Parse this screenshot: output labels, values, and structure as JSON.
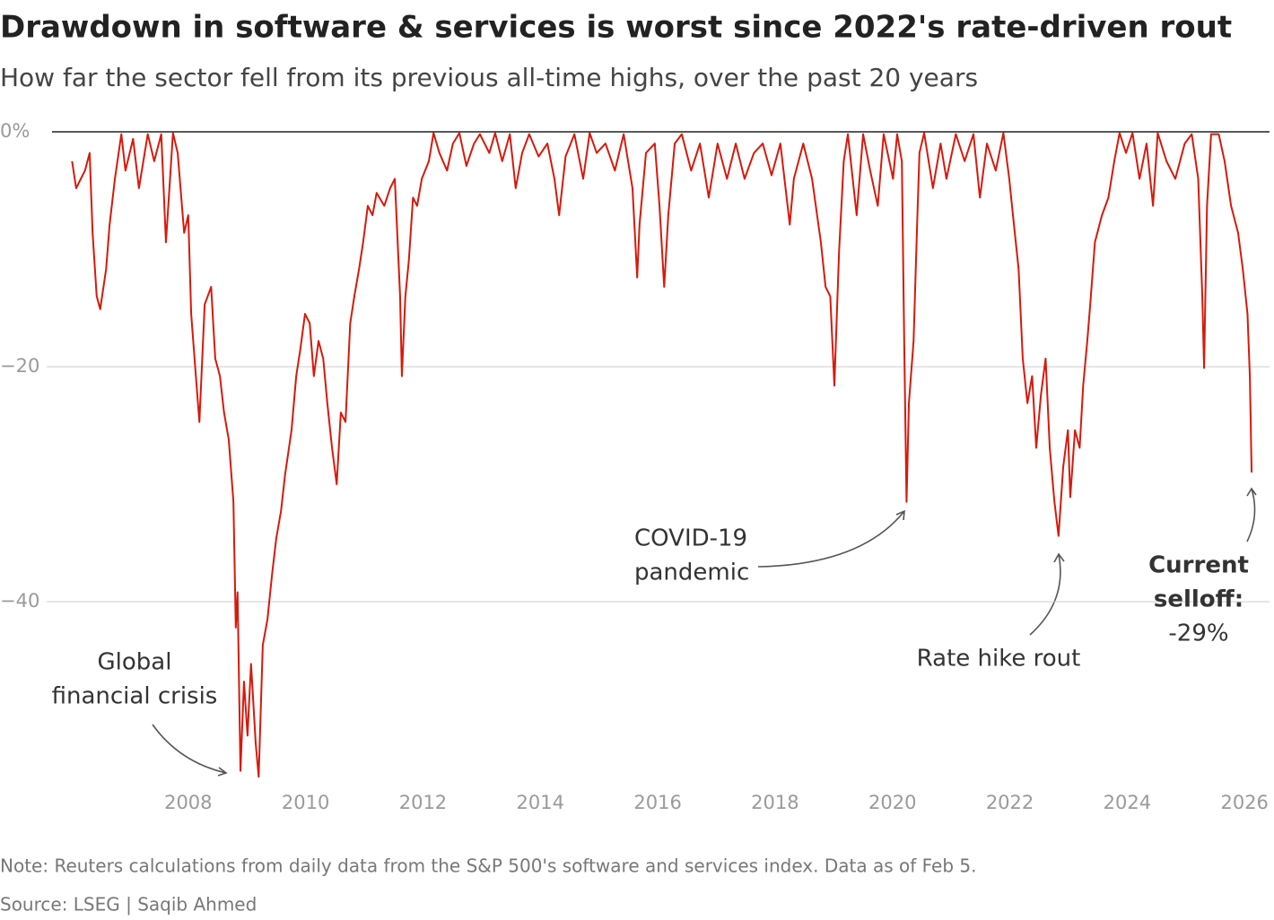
{
  "chart_data": {
    "type": "line",
    "title": "Drawdown in software & services is worst since 2022's rate-driven rout",
    "subtitle": "How far the sector fell from its previous all-time highs, over the past 20 years",
    "note": "Note: Reuters calculations from daily data from the S&P 500's software and services index. Data as of Feb 5.",
    "source": "Source: LSEG | Saqib Ahmed",
    "color": "#d7190b",
    "xlim": [
      2006,
      2026.15
    ],
    "ylim": [
      -56,
      0
    ],
    "xticks": [
      2008,
      2010,
      2012,
      2014,
      2016,
      2018,
      2020,
      2022,
      2024,
      2026
    ],
    "yticks": [
      {
        "value": 0,
        "label": "0%"
      },
      {
        "value": -20,
        "label": "−20"
      },
      {
        "value": -40,
        "label": "−40"
      }
    ],
    "grid": true,
    "annotations": [
      {
        "lines": [
          "Global",
          "financial crisis"
        ]
      },
      {
        "lines": [
          "COVID-19",
          "pandemic"
        ]
      },
      {
        "lines": [
          "Rate hike rout"
        ]
      },
      {
        "lines": [
          "Current",
          "selloff:",
          "-29%"
        ]
      }
    ],
    "x": [
      2006.02,
      2006.09,
      2006.24,
      2006.32,
      2006.37,
      2006.44,
      2006.5,
      2006.6,
      2006.66,
      2006.75,
      2006.86,
      2006.93,
      2007.06,
      2007.16,
      2007.31,
      2007.42,
      2007.54,
      2007.62,
      2007.74,
      2007.82,
      2007.93,
      2008.0,
      2008.05,
      2008.13,
      2008.19,
      2008.28,
      2008.39,
      2008.46,
      2008.54,
      2008.61,
      2008.69,
      2008.77,
      2008.81,
      2008.84,
      2008.89,
      2008.95,
      2009.01,
      2009.07,
      2009.15,
      2009.2,
      2009.27,
      2009.35,
      2009.43,
      2009.5,
      2009.58,
      2009.65,
      2009.76,
      2009.84,
      2009.91,
      2009.99,
      2010.07,
      2010.14,
      2010.22,
      2010.3,
      2010.37,
      2010.45,
      2010.53,
      2010.6,
      2010.68,
      2010.76,
      2010.83,
      2010.91,
      2010.98,
      2011.06,
      2011.14,
      2011.21,
      2011.34,
      2011.44,
      2011.52,
      2011.61,
      2011.64,
      2011.7,
      2011.76,
      2011.83,
      2011.9,
      2011.98,
      2012.1,
      2012.18,
      2012.28,
      2012.41,
      2012.51,
      2012.62,
      2012.74,
      2012.87,
      2012.97,
      2013.13,
      2013.23,
      2013.35,
      2013.48,
      2013.58,
      2013.69,
      2013.81,
      2013.97,
      2014.12,
      2014.24,
      2014.32,
      2014.43,
      2014.58,
      2014.73,
      2014.84,
      2014.96,
      2015.11,
      2015.27,
      2015.42,
      2015.57,
      2015.65,
      2015.69,
      2015.8,
      2015.95,
      2016.03,
      2016.11,
      2016.18,
      2016.29,
      2016.41,
      2016.57,
      2016.72,
      2016.87,
      2017.02,
      2017.18,
      2017.33,
      2017.48,
      2017.64,
      2017.79,
      2017.94,
      2018.09,
      2018.25,
      2018.32,
      2018.48,
      2018.63,
      2018.78,
      2018.86,
      2018.94,
      2019.01,
      2019.09,
      2019.17,
      2019.24,
      2019.39,
      2019.5,
      2019.62,
      2019.75,
      2019.85,
      2020.01,
      2020.08,
      2020.16,
      2020.2,
      2020.24,
      2020.28,
      2020.36,
      2020.42,
      2020.46,
      2020.54,
      2020.69,
      2020.82,
      2020.92,
      2021.08,
      2021.23,
      2021.38,
      2021.49,
      2021.61,
      2021.76,
      2021.89,
      2021.99,
      2022.07,
      2022.15,
      2022.22,
      2022.3,
      2022.38,
      2022.45,
      2022.53,
      2022.61,
      2022.68,
      2022.76,
      2022.83,
      2022.91,
      2022.99,
      2023.03,
      2023.11,
      2023.19,
      2023.25,
      2023.32,
      2023.37,
      2023.45,
      2023.57,
      2023.68,
      2023.78,
      2023.87,
      2023.98,
      2024.09,
      2024.21,
      2024.33,
      2024.44,
      2024.52,
      2024.67,
      2024.82,
      2024.98,
      2025.1,
      2025.21,
      2025.28,
      2025.31,
      2025.36,
      2025.43,
      2025.56,
      2025.66,
      2025.77,
      2025.89,
      2025.97,
      2026.05,
      2026.09,
      2026.12
    ],
    "values": [
      -2.5,
      -4.8,
      -3.3,
      -1.8,
      -8.6,
      -14.0,
      -15.1,
      -11.7,
      -7.9,
      -4.0,
      -0.2,
      -3.3,
      -0.6,
      -4.8,
      -0.2,
      -2.5,
      -0.2,
      -9.4,
      -0.1,
      -1.8,
      -8.6,
      -7.1,
      -15.5,
      -20.8,
      -24.7,
      -14.7,
      -13.2,
      -19.3,
      -20.8,
      -23.9,
      -26.2,
      -31.5,
      -42.2,
      -39.2,
      -54.4,
      -46.8,
      -51.4,
      -45.3,
      -52.1,
      -54.9,
      -43.7,
      -41.5,
      -37.6,
      -34.6,
      -32.3,
      -29.2,
      -25.4,
      -20.8,
      -18.5,
      -15.5,
      -16.3,
      -20.8,
      -17.8,
      -19.3,
      -23.1,
      -26.9,
      -30.0,
      -23.9,
      -24.7,
      -16.3,
      -14.0,
      -11.7,
      -9.4,
      -6.3,
      -7.1,
      -5.2,
      -6.3,
      -4.8,
      -4.0,
      -14.0,
      -20.8,
      -14.0,
      -10.9,
      -5.6,
      -6.3,
      -4.0,
      -2.5,
      -0.1,
      -1.8,
      -3.3,
      -1.0,
      -0.1,
      -2.9,
      -1.0,
      -0.2,
      -1.8,
      -0.1,
      -2.5,
      -0.2,
      -4.8,
      -1.8,
      -0.2,
      -2.1,
      -1.0,
      -4.0,
      -7.1,
      -2.1,
      -0.2,
      -4.0,
      -0.1,
      -1.8,
      -1.0,
      -3.3,
      -0.2,
      -4.8,
      -12.4,
      -7.9,
      -1.8,
      -1.0,
      -6.3,
      -13.2,
      -7.1,
      -1.0,
      -0.2,
      -3.3,
      -1.0,
      -5.6,
      -1.0,
      -4.0,
      -1.0,
      -4.0,
      -1.8,
      -1.0,
      -3.7,
      -1.0,
      -7.9,
      -4.0,
      -1.0,
      -4.0,
      -9.4,
      -13.2,
      -14.0,
      -21.6,
      -10.2,
      -2.5,
      -0.2,
      -7.1,
      -0.2,
      -3.3,
      -6.3,
      -0.2,
      -4.0,
      -0.2,
      -2.5,
      -17.8,
      -31.5,
      -23.1,
      -17.8,
      -7.9,
      -1.8,
      -0.1,
      -4.8,
      -1.0,
      -4.0,
      -0.2,
      -2.5,
      -0.2,
      -5.6,
      -1.0,
      -3.3,
      -0.1,
      -4.0,
      -7.9,
      -11.7,
      -19.3,
      -23.1,
      -20.8,
      -26.9,
      -22.4,
      -19.3,
      -26.9,
      -31.5,
      -34.4,
      -28.5,
      -25.4,
      -31.1,
      -25.4,
      -26.9,
      -21.6,
      -17.8,
      -14.7,
      -9.4,
      -7.1,
      -5.6,
      -2.5,
      -0.1,
      -1.8,
      -0.1,
      -4.0,
      -1.0,
      -6.3,
      -0.1,
      -2.5,
      -4.0,
      -1.0,
      -0.2,
      -4.0,
      -14.0,
      -20.1,
      -6.3,
      -0.2,
      -0.2,
      -2.5,
      -6.3,
      -8.6,
      -11.7,
      -15.5,
      -20.8,
      -29.0
    ]
  }
}
